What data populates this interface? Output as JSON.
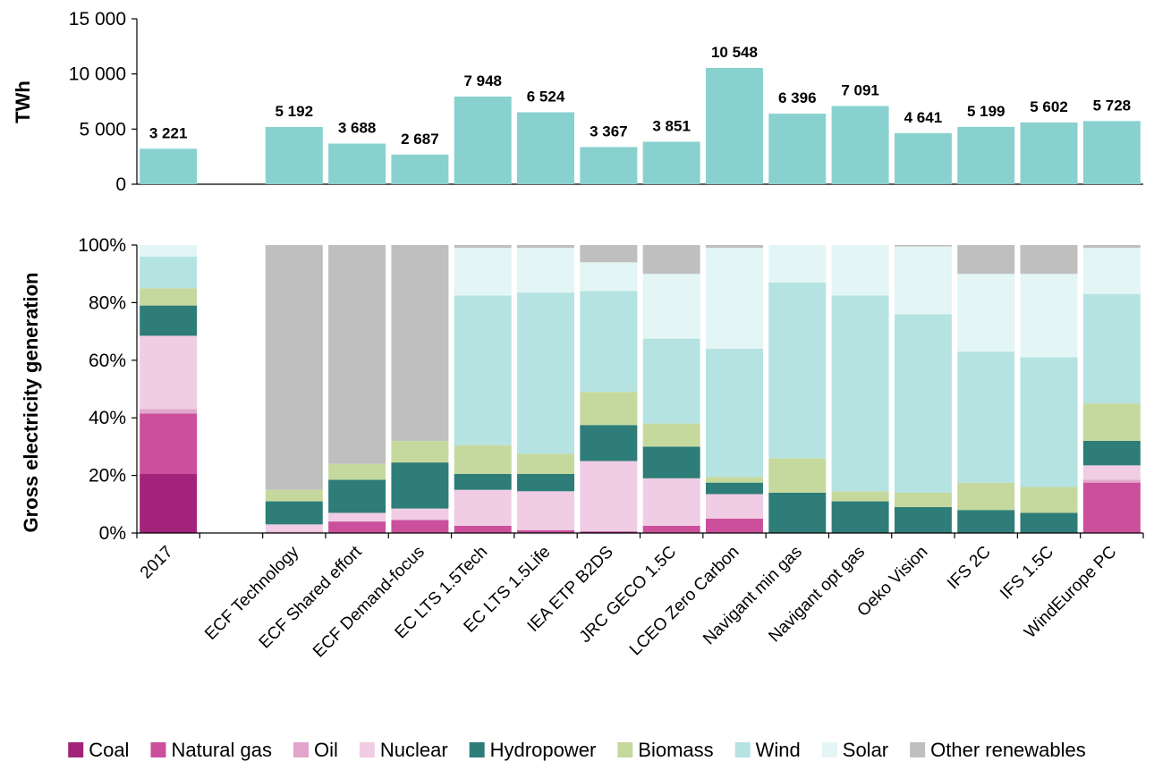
{
  "chart_data": [
    {
      "type": "bar",
      "ylabel": "TWh",
      "ylim": [
        0,
        15000
      ],
      "yticks": [
        "0",
        "5 000",
        "10 000",
        "15 000"
      ],
      "categories": [
        "2017",
        "",
        "ECF Technology",
        "ECF Shared effort",
        "ECF Demand-focus",
        "EC LTS 1.5Tech",
        "EC LTS 1.5Life",
        "IEA ETP B2DS",
        "JRC GECO 1.5C",
        "LCEO Zero Carbon",
        "Navigant min gas",
        "Navigant opt gas",
        "Oeko Vision",
        "IFS 2C",
        "IFS 1.5C",
        "WindEurope PC"
      ],
      "values": [
        3221,
        null,
        5192,
        3688,
        2687,
        7948,
        6524,
        3367,
        3851,
        10548,
        6396,
        7091,
        4641,
        5199,
        5602,
        5728
      ],
      "labels": [
        "3 221",
        "",
        "5 192",
        "3 688",
        "2 687",
        "7 948",
        "6 524",
        "3 367",
        "3 851",
        "10 548",
        "6 396",
        "7 091",
        "4 641",
        "5 199",
        "5 602",
        "5 728"
      ],
      "color": "#88d1cf"
    },
    {
      "type": "bar",
      "stacked": true,
      "ylabel": "Gross electricity generation",
      "ylim": [
        0,
        100
      ],
      "yticks": [
        "0%",
        "20%",
        "40%",
        "60%",
        "80%",
        "100%"
      ],
      "categories": [
        "2017",
        "",
        "ECF Technology",
        "ECF Shared effort",
        "ECF Demand-focus",
        "EC LTS 1.5Tech",
        "EC LTS 1.5Life",
        "IEA ETP B2DS",
        "JRC GECO 1.5C",
        "LCEO Zero Carbon",
        "Navigant min gas",
        "Navigant opt gas",
        "Oeko Vision",
        "IFS 2C",
        "IFS 1.5C",
        "WindEurope PC"
      ],
      "series": [
        {
          "name": "Coal",
          "color": "#a3237a",
          "values": [
            20.5,
            null,
            0,
            0,
            0,
            0,
            0,
            0.5,
            0,
            0,
            0,
            0,
            0,
            0,
            0,
            0
          ]
        },
        {
          "name": "Natural gas",
          "color": "#cc4f9c",
          "values": [
            21,
            null,
            0,
            4,
            4.5,
            2.5,
            1,
            0,
            2.5,
            5,
            0,
            0,
            0,
            0,
            0,
            17.5
          ]
        },
        {
          "name": "Oil",
          "color": "#e2a5cc",
          "values": [
            1.5,
            null,
            0.5,
            0,
            0,
            0,
            0,
            0,
            0,
            0,
            0,
            0,
            0,
            0,
            0,
            1
          ]
        },
        {
          "name": "Nuclear",
          "color": "#f0cde4",
          "values": [
            25.5,
            null,
            2.5,
            3,
            4,
            12.5,
            13.5,
            24.5,
            16.5,
            8.5,
            0,
            0,
            0,
            0,
            0,
            5
          ]
        },
        {
          "name": "Hydropower",
          "color": "#2e7d78",
          "values": [
            10.5,
            null,
            8,
            11.5,
            16,
            5.5,
            6,
            12.5,
            11,
            4,
            14,
            11,
            9,
            8,
            7,
            8.5
          ]
        },
        {
          "name": "Biomass",
          "color": "#c5d99e",
          "values": [
            6,
            null,
            4,
            5.5,
            7.5,
            10,
            7,
            11.5,
            8,
            2,
            12,
            3.5,
            5,
            9.5,
            9,
            13
          ]
        },
        {
          "name": "Wind",
          "color": "#b5e3e2",
          "values": [
            11,
            null,
            0,
            0,
            0,
            52,
            56,
            35,
            29.5,
            44.5,
            61,
            68,
            62,
            45.5,
            45,
            38
          ]
        },
        {
          "name": "Solar",
          "color": "#e3f5f5",
          "values": [
            4,
            null,
            0,
            0,
            0,
            16.5,
            15.5,
            10,
            22.5,
            35,
            13,
            17.5,
            23.5,
            27,
            29,
            16
          ]
        },
        {
          "name": "Other renewables",
          "color": "#bfbfbf",
          "values": [
            0,
            null,
            85,
            76,
            68,
            1,
            1,
            6,
            10,
            1,
            0,
            0,
            0.5,
            10,
            10,
            1
          ]
        }
      ]
    }
  ],
  "legend": [
    {
      "name": "Coal",
      "color": "#a3237a"
    },
    {
      "name": "Natural gas",
      "color": "#cc4f9c"
    },
    {
      "name": "Oil",
      "color": "#e2a5cc"
    },
    {
      "name": "Nuclear",
      "color": "#f0cde4"
    },
    {
      "name": "Hydropower",
      "color": "#2e7d78"
    },
    {
      "name": "Biomass",
      "color": "#c5d99e"
    },
    {
      "name": "Wind",
      "color": "#b5e3e2"
    },
    {
      "name": "Solar",
      "color": "#e3f5f5"
    },
    {
      "name": "Other renewables",
      "color": "#bfbfbf"
    }
  ]
}
